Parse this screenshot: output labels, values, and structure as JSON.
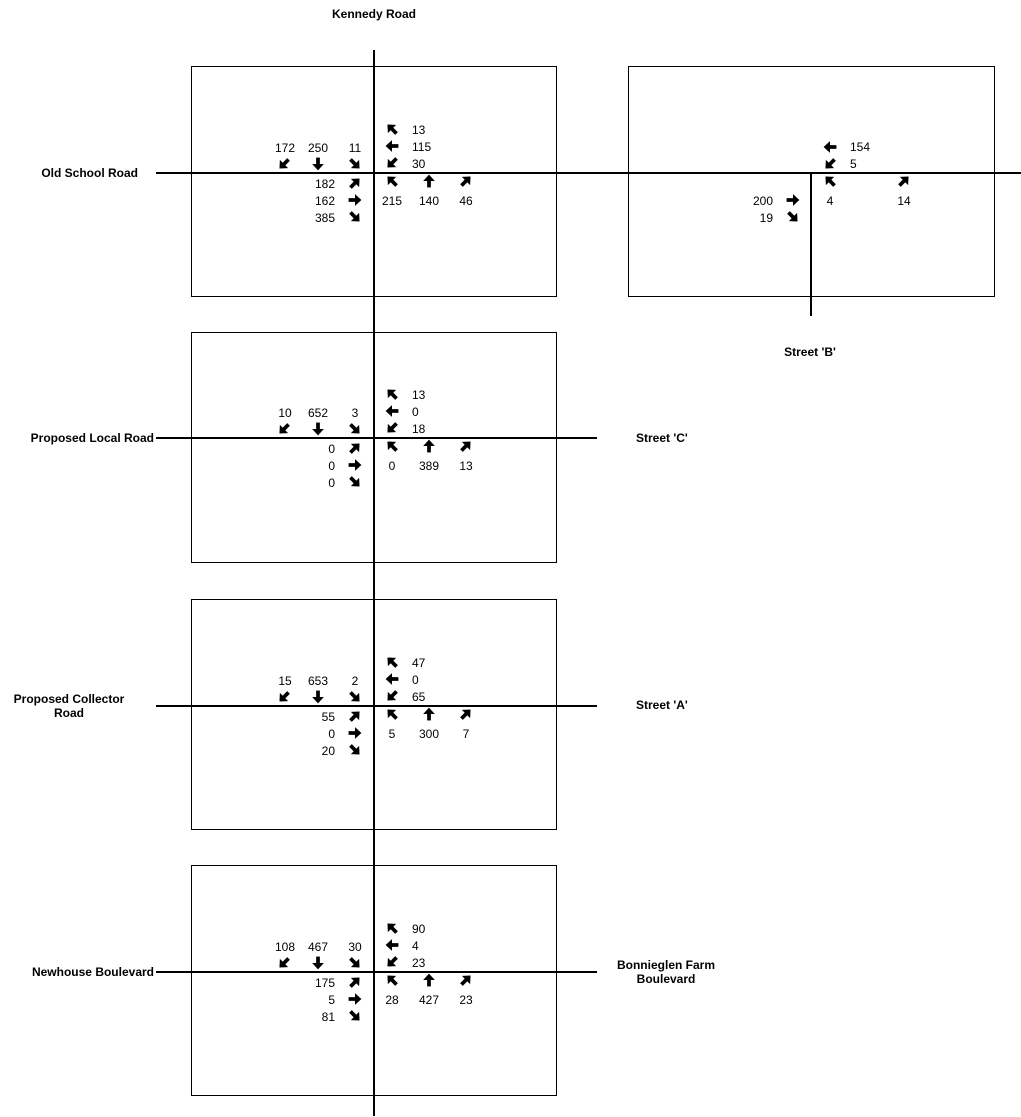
{
  "streets": {
    "kennedy": "Kennedy Road",
    "old_school": "Old School Road",
    "street_b": "Street 'B'",
    "proposed_local": "Proposed Local Road",
    "street_c": "Street 'C'",
    "proposed_collector": "Proposed Collector Road",
    "street_a": "Street 'A'",
    "newhouse": "Newhouse Boulevard",
    "bonnieglen": "Bonnieglen Farm Boulevard"
  },
  "arrow_icons": {
    "sb": [
      "southwest-arrow-icon",
      "down-arrow-icon",
      "southeast-arrow-icon"
    ],
    "wb": [
      "northwest-arrow-icon",
      "left-arrow-icon",
      "southwest-arrow-icon"
    ],
    "nb": [
      "northwest-arrow-icon",
      "up-arrow-icon",
      "northeast-arrow-icon"
    ],
    "eb": [
      "northeast-arrow-icon",
      "right-arrow-icon",
      "southeast-arrow-icon"
    ]
  },
  "intersections": [
    {
      "id": "old-school-kennedy",
      "sb": {
        "right": "172",
        "through": "250",
        "left": "11"
      },
      "wb": {
        "right": "13",
        "through": "115",
        "left": "30"
      },
      "nb": {
        "left": "215",
        "through": "140",
        "right": "46"
      },
      "eb": {
        "left": "182",
        "through": "162",
        "right": "385"
      }
    },
    {
      "id": "old-school-street-b",
      "wb": {
        "through": "154",
        "left": "5"
      },
      "nb": {
        "left": "4",
        "right": "14"
      },
      "eb": {
        "through": "200",
        "right": "19"
      }
    },
    {
      "id": "proposed-local-kennedy",
      "sb": {
        "right": "10",
        "through": "652",
        "left": "3"
      },
      "wb": {
        "right": "13",
        "through": "0",
        "left": "18"
      },
      "nb": {
        "left": "0",
        "through": "389",
        "right": "13"
      },
      "eb": {
        "left": "0",
        "through": "0",
        "right": "0"
      }
    },
    {
      "id": "proposed-collector-kennedy",
      "sb": {
        "right": "15",
        "through": "653",
        "left": "2"
      },
      "wb": {
        "right": "47",
        "through": "0",
        "left": "65"
      },
      "nb": {
        "left": "5",
        "through": "300",
        "right": "7"
      },
      "eb": {
        "left": "55",
        "through": "0",
        "right": "20"
      }
    },
    {
      "id": "newhouse-kennedy",
      "sb": {
        "right": "108",
        "through": "467",
        "left": "30"
      },
      "wb": {
        "right": "90",
        "through": "4",
        "left": "23"
      },
      "nb": {
        "left": "28",
        "through": "427",
        "right": "23"
      },
      "eb": {
        "left": "175",
        "through": "5",
        "right": "81"
      }
    }
  ]
}
